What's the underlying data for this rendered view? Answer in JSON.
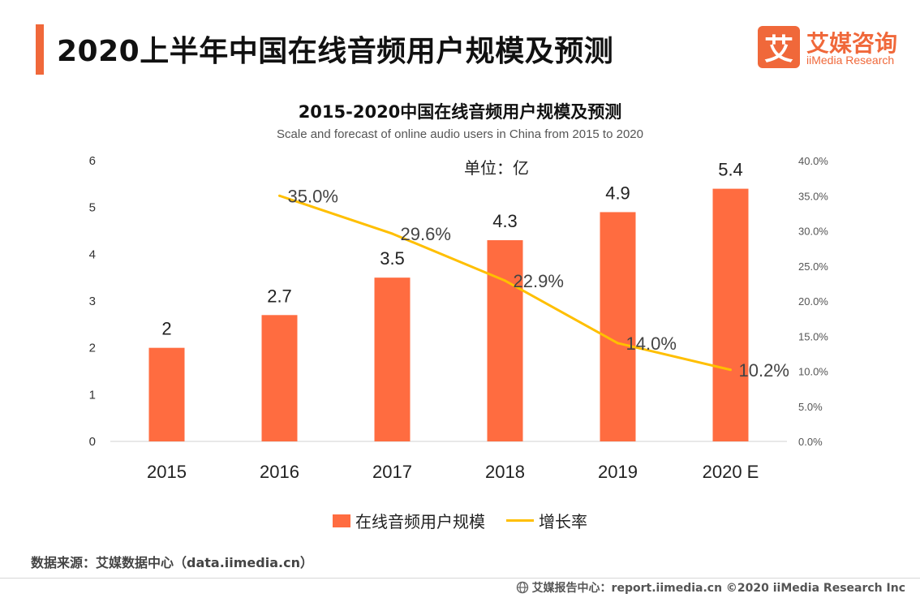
{
  "header": {
    "title": "2020上半年中国在线音频用户规模及预测"
  },
  "logo": {
    "mark": "艾",
    "name_cn": "艾媒咨询",
    "name_en": "iiMedia Research"
  },
  "colors": {
    "accent": "#f0683a",
    "bar": "#ff6c40",
    "line": "#ffbf00"
  },
  "chart_data": {
    "type": "bar",
    "title": "2015-2020中国在线音频用户规模及预测",
    "subtitle": "Scale and forecast of online audio users in China from 2015 to 2020",
    "unit_label": "单位：亿",
    "categories": [
      "2015",
      "2016",
      "2017",
      "2018",
      "2019",
      "2020 E"
    ],
    "series": [
      {
        "name": "在线音频用户规模",
        "type": "bar",
        "axis": "left",
        "values": [
          2,
          2.7,
          3.5,
          4.3,
          4.9,
          5.4
        ],
        "labels": [
          "2",
          "2.7",
          "3.5",
          "4.3",
          "4.9",
          "5.4"
        ]
      },
      {
        "name": "增长率",
        "type": "line",
        "axis": "right",
        "values": [
          null,
          35.0,
          29.6,
          22.9,
          14.0,
          10.2
        ],
        "labels": [
          "",
          "35.0%",
          "29.6%",
          "22.9%",
          "14.0%",
          "10.2%"
        ]
      }
    ],
    "ylim_left": [
      0,
      6
    ],
    "yticks_left": [
      "0",
      "1",
      "2",
      "3",
      "4",
      "5",
      "6"
    ],
    "ylim_right": [
      0,
      40
    ],
    "yticks_right": [
      "0.0%",
      "5.0%",
      "10.0%",
      "15.0%",
      "20.0%",
      "25.0%",
      "30.0%",
      "35.0%",
      "40.0%"
    ],
    "grid": false,
    "legend_position": "bottom"
  },
  "source": "数据来源：艾媒数据中心（data.iimedia.cn）",
  "footer": {
    "icon": "globe-icon",
    "text": "艾媒报告中心：report.iimedia.cn  ©2020  iiMedia Research  Inc"
  }
}
